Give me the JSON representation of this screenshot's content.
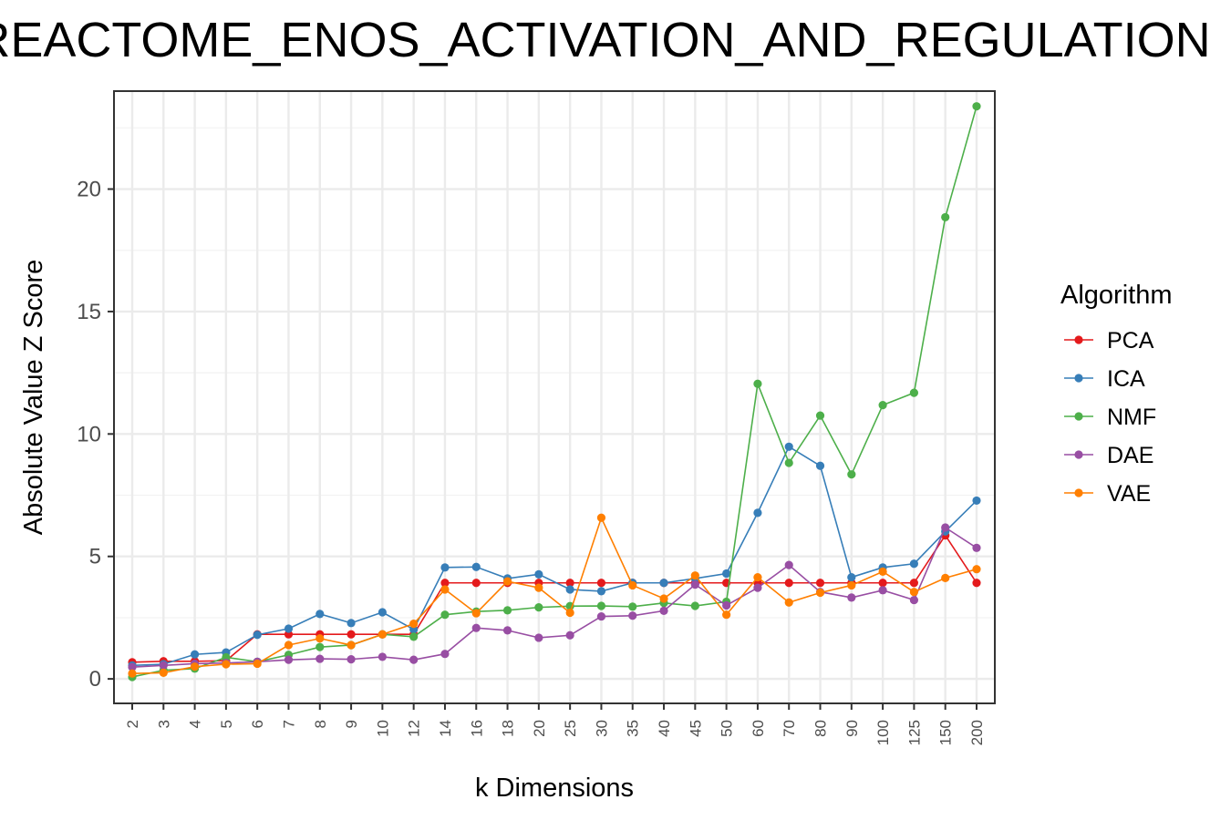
{
  "chart_data": {
    "type": "line",
    "title": "REACTOME_ENOS_ACTIVATION_AND_REGULATION",
    "xlabel": "k Dimensions",
    "ylabel": "Absolute Value Z Score",
    "categories": [
      "2",
      "3",
      "4",
      "5",
      "6",
      "7",
      "8",
      "9",
      "10",
      "12",
      "14",
      "16",
      "18",
      "20",
      "25",
      "30",
      "35",
      "40",
      "45",
      "50",
      "60",
      "70",
      "80",
      "90",
      "100",
      "125",
      "150",
      "200"
    ],
    "ylim": [
      -1,
      24
    ],
    "yticks": [
      0,
      5,
      10,
      15,
      20
    ],
    "grid": true,
    "legend": {
      "title": "Algorithm",
      "placement": "right"
    },
    "series": [
      {
        "name": "PCA",
        "color": "#E41A1C",
        "values": [
          0.68,
          0.72,
          0.72,
          0.74,
          1.82,
          1.82,
          1.82,
          1.82,
          1.82,
          1.82,
          3.92,
          3.92,
          3.92,
          3.92,
          3.92,
          3.92,
          3.92,
          3.92,
          3.92,
          3.92,
          3.92,
          3.92,
          3.92,
          3.92,
          3.92,
          3.92,
          5.86,
          3.92
        ]
      },
      {
        "name": "ICA",
        "color": "#377EB8",
        "values": [
          0.55,
          0.6,
          1.0,
          1.08,
          1.8,
          2.05,
          2.65,
          2.28,
          2.72,
          2.02,
          4.55,
          4.57,
          4.1,
          4.27,
          3.65,
          3.58,
          3.92,
          3.92,
          4.1,
          4.3,
          6.78,
          9.48,
          8.7,
          4.15,
          4.55,
          4.7,
          6.02,
          7.28
        ]
      },
      {
        "name": "NMF",
        "color": "#4DAF4A",
        "values": [
          0.08,
          0.35,
          0.42,
          0.88,
          0.7,
          0.98,
          1.3,
          1.38,
          1.82,
          1.72,
          2.62,
          2.75,
          2.8,
          2.92,
          2.97,
          2.98,
          2.95,
          3.1,
          2.98,
          3.15,
          12.05,
          8.82,
          10.75,
          8.35,
          11.18,
          11.68,
          18.85,
          23.38
        ]
      },
      {
        "name": "DAE",
        "color": "#984EA3",
        "values": [
          0.48,
          0.55,
          0.62,
          0.65,
          0.7,
          0.78,
          0.82,
          0.8,
          0.9,
          0.78,
          1.02,
          2.08,
          1.98,
          1.68,
          1.78,
          2.55,
          2.58,
          2.78,
          3.85,
          3.0,
          3.72,
          4.65,
          3.55,
          3.32,
          3.62,
          3.22,
          6.18,
          5.35
        ]
      },
      {
        "name": "VAE",
        "color": "#FF7F00",
        "values": [
          0.22,
          0.25,
          0.5,
          0.6,
          0.62,
          1.38,
          1.65,
          1.38,
          1.82,
          2.25,
          3.65,
          2.68,
          3.98,
          3.72,
          2.7,
          6.58,
          3.82,
          3.28,
          4.22,
          2.62,
          4.15,
          3.12,
          3.52,
          3.82,
          4.38,
          3.55,
          4.12,
          4.48
        ]
      }
    ]
  }
}
